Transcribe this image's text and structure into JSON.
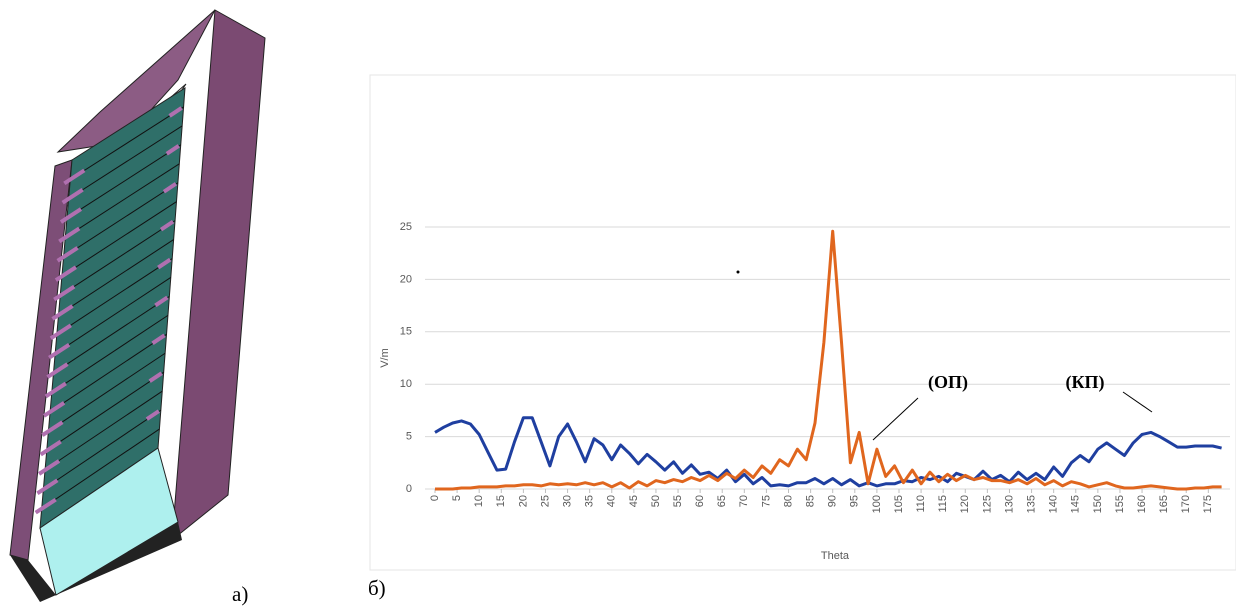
{
  "panel_labels": [
    "а)",
    "б)"
  ],
  "chart_data": {
    "type": "line",
    "y_label": "V/m",
    "x_label": "Theta",
    "annotations": [
      "(ОП)",
      "(КП)"
    ],
    "x": [
      0,
      2,
      4,
      6,
      8,
      10,
      12,
      14,
      16,
      18,
      20,
      22,
      24,
      26,
      28,
      30,
      32,
      34,
      36,
      38,
      40,
      42,
      44,
      46,
      48,
      50,
      52,
      54,
      56,
      58,
      60,
      62,
      64,
      66,
      68,
      70,
      72,
      74,
      76,
      78,
      80,
      82,
      84,
      86,
      88,
      90,
      92,
      94,
      96,
      98,
      100,
      102,
      104,
      106,
      108,
      110,
      112,
      114,
      116,
      118,
      120,
      122,
      124,
      126,
      128,
      130,
      132,
      134,
      136,
      138,
      140,
      142,
      144,
      146,
      148,
      150,
      152,
      154,
      156,
      158,
      160,
      162,
      164,
      166,
      168,
      170,
      172,
      174,
      176,
      178
    ],
    "series": [
      {
        "color": "#1f3fa0",
        "values": [
          5.4,
          5.9,
          6.3,
          6.5,
          6.2,
          5.2,
          3.5,
          1.8,
          1.9,
          4.5,
          6.8,
          6.8,
          4.5,
          2.2,
          5,
          6.2,
          4.5,
          2.6,
          4.8,
          4.2,
          2.8,
          4.2,
          3.4,
          2.4,
          3.3,
          2.6,
          1.8,
          2.6,
          1.5,
          2.3,
          1.4,
          1.6,
          1,
          1.8,
          0.7,
          1.4,
          0.5,
          1.1,
          0.3,
          0.4,
          0.3,
          0.6,
          0.6,
          1,
          0.5,
          1,
          0.4,
          0.9,
          0.3,
          0.6,
          0.3,
          0.5,
          0.5,
          0.8,
          0.7,
          1.1,
          0.9,
          1.2,
          0.7,
          1.5,
          1.2,
          0.9,
          1.7,
          0.9,
          1.3,
          0.7,
          1.6,
          0.9,
          1.5,
          0.9,
          2.1,
          1.2,
          2.5,
          3.2,
          2.6,
          3.8,
          4.4,
          3.8,
          3.2,
          4.4,
          5.2,
          5.4,
          5,
          4.5,
          4,
          4,
          4.1,
          4.1,
          4.1,
          3.9
        ]
      },
      {
        "color": "#e0661e",
        "values": [
          0,
          0,
          0,
          0.1,
          0.1,
          0.2,
          0.2,
          0.2,
          0.3,
          0.3,
          0.4,
          0.4,
          0.3,
          0.5,
          0.4,
          0.5,
          0.4,
          0.6,
          0.4,
          0.6,
          0.2,
          0.6,
          0.1,
          0.7,
          0.3,
          0.8,
          0.6,
          0.9,
          0.7,
          1.1,
          0.8,
          1.3,
          0.8,
          1.5,
          1,
          1.8,
          1.1,
          2.2,
          1.5,
          2.8,
          2.2,
          3.8,
          2.8,
          6.3,
          14,
          24.6,
          14,
          2.5,
          5.4,
          0.5,
          3.8,
          1.2,
          2.2,
          0.6,
          1.8,
          0.5,
          1.6,
          0.7,
          1.4,
          0.8,
          1.3,
          0.9,
          1.1,
          0.8,
          0.8,
          0.6,
          0.9,
          0.5,
          1,
          0.4,
          0.8,
          0.3,
          0.7,
          0.5,
          0.2,
          0.4,
          0.6,
          0.3,
          0.1,
          0.1,
          0.2,
          0.3,
          0.2,
          0.1,
          0,
          0,
          0.1,
          0.1,
          0.2,
          0.2
        ]
      }
    ],
    "xlim": [
      0,
      179
    ],
    "ylim": [
      0,
      25
    ],
    "xticks": [
      0,
      5,
      10,
      15,
      20,
      25,
      30,
      35,
      40,
      45,
      50,
      55,
      60,
      65,
      70,
      75,
      80,
      85,
      90,
      95,
      100,
      105,
      110,
      115,
      120,
      125,
      130,
      135,
      140,
      145,
      150,
      155,
      160,
      165,
      170,
      175
    ],
    "yticks": [
      0,
      5,
      10,
      15,
      20,
      25
    ],
    "grid": true
  }
}
